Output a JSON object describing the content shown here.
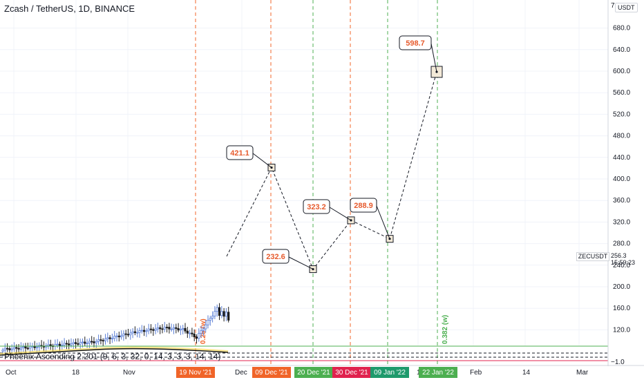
{
  "header": {
    "title": "Zcash / TetherUS, 1D, BINANCE",
    "currency_badge": "USDT",
    "corner_glyph": "7"
  },
  "indicator": {
    "label": "Phoenix Ascending 2.201 (9, 6, 3, 32, 0, 14, 3, 3, 3, 14, 14)"
  },
  "price_axis": {
    "ticks": [
      "680.0",
      "640.0",
      "600.0",
      "560.0",
      "520.0",
      "480.0",
      "440.0",
      "400.0",
      "360.0",
      "320.0",
      "280.0",
      "240.0",
      "200.0",
      "160.0",
      "120.0"
    ],
    "indicator_tick": "−1.0",
    "symbol": "ZECUSDT",
    "last_price": "256.3",
    "countdown": "15:59:23"
  },
  "time_axis": {
    "labels": [
      "Oct",
      "18",
      "Nov",
      "Dec",
      "1",
      "Feb",
      "14",
      "Mar"
    ],
    "markers": [
      {
        "text": "19 Nov '21",
        "color": "#f06428"
      },
      {
        "text": "09 Dec '21",
        "color": "#f06428"
      },
      {
        "text": "20 Dec '21",
        "color": "#4caf50"
      },
      {
        "text": "30 Dec '21",
        "color": "#e0224e"
      },
      {
        "text": "09 Jan '22",
        "color": "#1e9a6c"
      },
      {
        "text": "22 Jan '22",
        "color": "#4caf50"
      }
    ]
  },
  "fib_labels": {
    "left": "0.25 (w)",
    "right": "0.382 (w)"
  },
  "chart_data": {
    "type": "candlestick",
    "title": "Zcash / TetherUS, 1D, BINANCE",
    "y_range": [
      80,
      700
    ],
    "projection_points": [
      {
        "value": 421.1,
        "label": "421.1"
      },
      {
        "value": 232.6,
        "label": "232.6"
      },
      {
        "value": 323.2,
        "label": "323.2"
      },
      {
        "value": 288.9,
        "label": "288.9"
      },
      {
        "value": 598.7,
        "label": "598.7"
      }
    ],
    "last_price": 256.3
  },
  "colors": {
    "orange": "#f06428",
    "green": "#4caf50",
    "red": "#e0224e",
    "label_text": "#e65a2c",
    "candle_up": "#5b7fd6",
    "candle_down": "#1c1c1c",
    "grid": "#f0f3fa",
    "axis_text": "#131722"
  }
}
